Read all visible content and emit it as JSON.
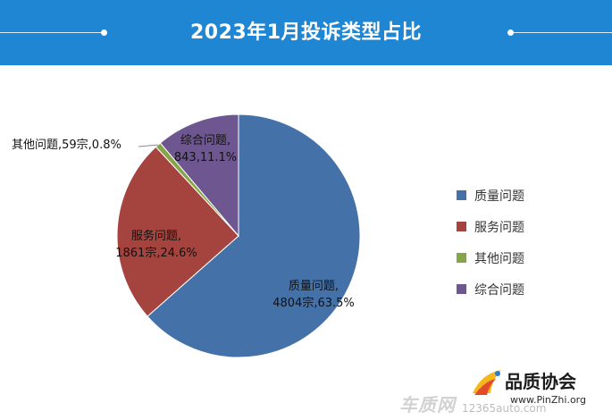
{
  "header": {
    "title": "2023年1月投诉类型占比"
  },
  "chart_data": {
    "type": "pie",
    "title": "2023年1月投诉类型占比",
    "unit": "宗",
    "slices": [
      {
        "name": "质量问题",
        "value": 4804,
        "percent": 63.5,
        "color": "#4472a8",
        "label_line1": "质量问题,",
        "label_line2": "4804宗,63.5%"
      },
      {
        "name": "服务问题",
        "value": 1861,
        "percent": 24.6,
        "color": "#a5443f",
        "label_line1": "服务问题,",
        "label_line2": "1861宗,24.6%"
      },
      {
        "name": "其他问题",
        "value": 59,
        "percent": 0.8,
        "color": "#86a448",
        "label_line1": "其他问题,59宗,0.8%",
        "label_line2": ""
      },
      {
        "name": "综合问题",
        "value": 843,
        "percent": 11.1,
        "color": "#6e5791",
        "label_line1": "综合问题,",
        "label_line2": "843,11.1%"
      }
    ],
    "legend": [
      "质量问题",
      "服务问题",
      "其他问题",
      "综合问题"
    ],
    "legend_position": "right",
    "start_angle": "12 o'clock",
    "direction": "clockwise"
  },
  "watermark": {
    "left_mark": "车质网",
    "left_url": "12365auto.com",
    "brand": "品质协会",
    "brand_url": "www.PinZhi.org"
  }
}
